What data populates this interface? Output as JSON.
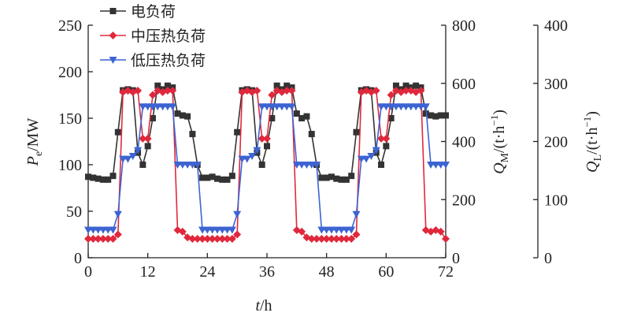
{
  "chart_data": {
    "type": "line",
    "xlabel": {
      "symbol": "t",
      "unit": "/h"
    },
    "ylabel": {
      "symbol": "P",
      "subscript": "e",
      "unit": "/MW"
    },
    "y2label": {
      "symbol": "Q",
      "subscript": "M",
      "unit": "/(t·h",
      "superscript": "−1",
      "close": ")"
    },
    "y3label": {
      "symbol": "Q",
      "subscript": "L",
      "unit": "/(t·h",
      "superscript": "−1",
      "close": ")"
    },
    "x": [
      0,
      1,
      2,
      3,
      4,
      5,
      6,
      7,
      8,
      9,
      10,
      11,
      12,
      13,
      14,
      15,
      16,
      17,
      18,
      19,
      20,
      21,
      22,
      23,
      24,
      25,
      26,
      27,
      28,
      29,
      30,
      31,
      32,
      33,
      34,
      35,
      36,
      37,
      38,
      39,
      40,
      41,
      42,
      43,
      44,
      45,
      46,
      47,
      48,
      49,
      50,
      51,
      52,
      53,
      54,
      55,
      56,
      57,
      58,
      59,
      60,
      61,
      62,
      63,
      64,
      65,
      66,
      67,
      68,
      69,
      70,
      71,
      72
    ],
    "xlim": [
      0,
      72
    ],
    "xticks": [
      0,
      12,
      24,
      36,
      48,
      60,
      72
    ],
    "ylim": [
      0,
      250
    ],
    "yticks": [
      0,
      50,
      100,
      150,
      200,
      250
    ],
    "y2lim": [
      0,
      800
    ],
    "y2ticks": [
      0,
      200,
      400,
      600,
      800
    ],
    "y3lim": [
      0,
      400
    ],
    "y3ticks": [
      0,
      100,
      200,
      300,
      400
    ],
    "series": [
      {
        "name": "电负荷",
        "color": "#333333",
        "marker": "square",
        "axis": "y",
        "values": [
          87,
          86,
          85,
          84,
          84,
          88,
          135,
          180,
          181,
          180,
          113,
          100,
          120,
          150,
          185,
          181,
          185,
          183,
          155,
          153,
          152,
          133,
          100,
          86,
          86,
          87,
          85,
          84,
          84,
          88,
          135,
          180,
          181,
          180,
          113,
          100,
          120,
          150,
          185,
          181,
          185,
          183,
          155,
          150,
          152,
          133,
          100,
          86,
          86,
          87,
          85,
          84,
          84,
          88,
          135,
          180,
          181,
          180,
          113,
          100,
          120,
          150,
          185,
          181,
          185,
          183,
          185,
          183,
          155,
          153,
          152,
          153,
          153
        ]
      },
      {
        "name": "中压热负荷",
        "color": "#e0283c",
        "marker": "diamond",
        "axis": "y2",
        "values": [
          65,
          65,
          65,
          65,
          65,
          65,
          80,
          570,
          575,
          570,
          575,
          410,
          410,
          560,
          575,
          570,
          575,
          575,
          95,
          90,
          70,
          65,
          65,
          65,
          65,
          65,
          65,
          65,
          65,
          65,
          80,
          570,
          575,
          570,
          575,
          410,
          410,
          560,
          575,
          570,
          575,
          575,
          95,
          90,
          70,
          65,
          65,
          65,
          65,
          65,
          65,
          65,
          65,
          65,
          80,
          570,
          575,
          570,
          575,
          410,
          410,
          560,
          575,
          570,
          575,
          575,
          570,
          575,
          95,
          90,
          95,
          90,
          65
        ]
      },
      {
        "name": "低压热负荷",
        "color": "#3c64d2",
        "marker": "triangle-down",
        "axis": "y3",
        "values": [
          48,
          48,
          48,
          48,
          48,
          48,
          75,
          170,
          170,
          175,
          185,
          260,
          260,
          260,
          260,
          260,
          260,
          260,
          160,
          160,
          160,
          160,
          160,
          48,
          48,
          48,
          48,
          48,
          48,
          48,
          75,
          170,
          170,
          175,
          185,
          260,
          260,
          260,
          260,
          260,
          260,
          260,
          160,
          160,
          160,
          160,
          160,
          48,
          48,
          48,
          48,
          48,
          48,
          48,
          75,
          170,
          170,
          175,
          185,
          260,
          260,
          260,
          260,
          260,
          260,
          260,
          260,
          260,
          260,
          160,
          160,
          160,
          160
        ]
      }
    ],
    "legend": "top-left"
  }
}
